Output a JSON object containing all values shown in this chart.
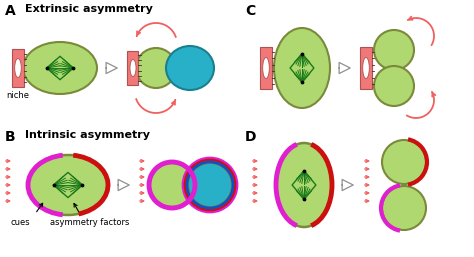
{
  "bg_color": "#ffffff",
  "light_green_cell": "#b0d870",
  "dark_green": "#1a7a1a",
  "niche_color": "#f07878",
  "teal_color": "#28b0c8",
  "magenta_color": "#e020d0",
  "red_color": "#cc1010",
  "arrow_color": "#f06060",
  "olive_border": "#7a8a3a",
  "gray_arrow": "#909090",
  "title_A": "Extrinsic asymmetry",
  "title_B": "Intrinsic asymmetry",
  "label_A": "A",
  "label_B": "B",
  "label_C": "C",
  "label_D": "D",
  "text_niche": "niche",
  "text_cues": "cues",
  "text_asym": "asymmetry factors"
}
